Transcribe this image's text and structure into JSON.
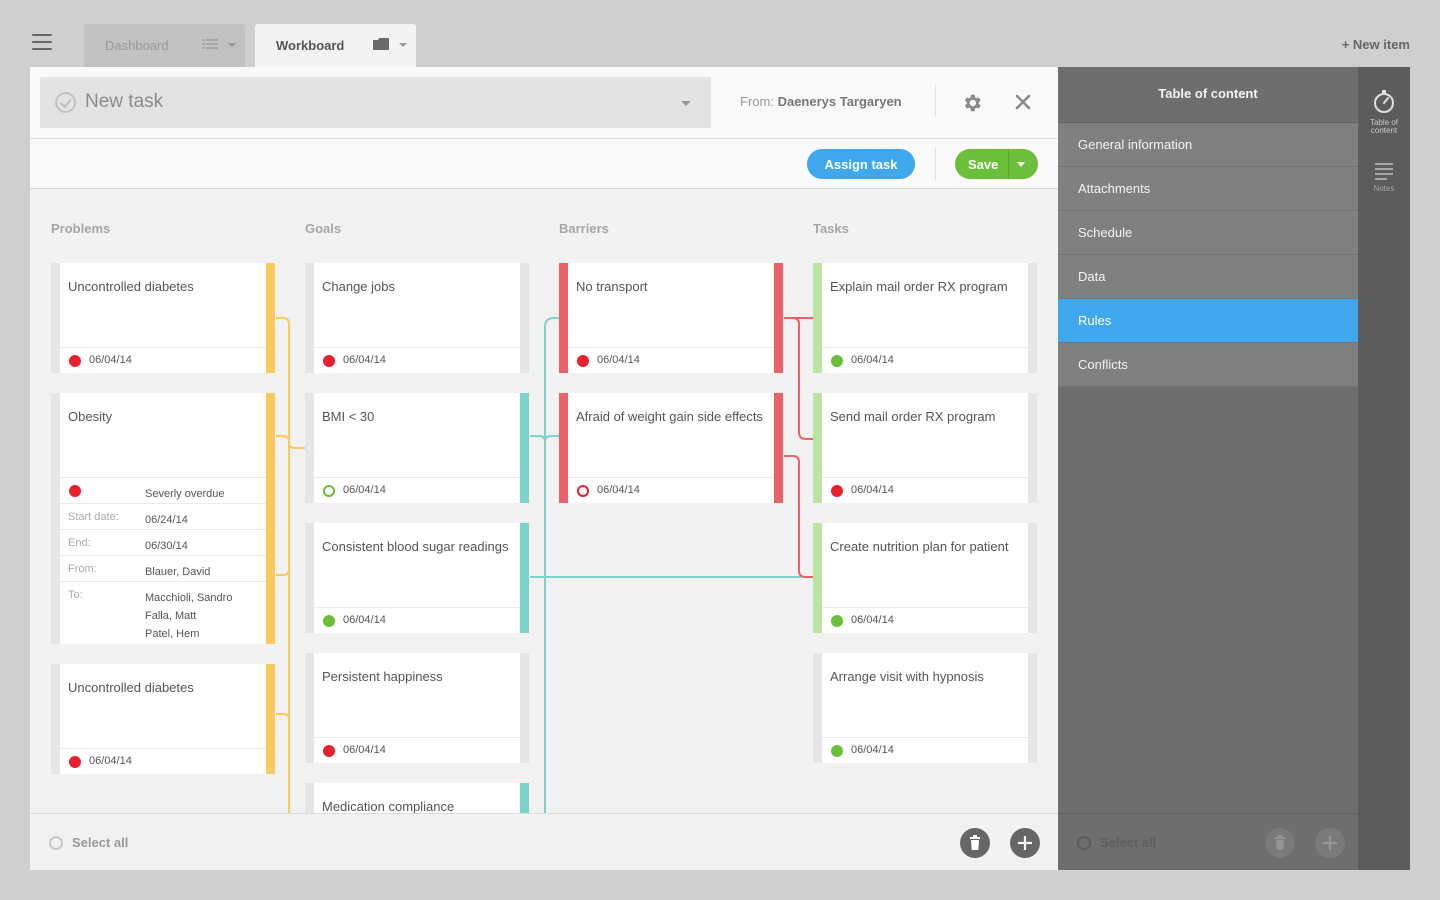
{
  "topbar": {
    "tabs": [
      {
        "label": "Dashboard",
        "icon": "grid-list-icon"
      },
      {
        "label": "Workboard",
        "icon": "folder-icon"
      }
    ],
    "new_item": "+ New item"
  },
  "header": {
    "task_title": "New task",
    "from_label": "From:",
    "from_name": "Daenerys Targaryen",
    "assign_label": "Assign task",
    "save_label": "Save"
  },
  "columns": {
    "problems": "Problems",
    "goals": "Goals",
    "barriers": "Barriers",
    "tasks": "Tasks"
  },
  "problems": [
    {
      "title": "Uncontrolled diabetes",
      "date": "06/04/14",
      "status": "red"
    },
    {
      "title": "Obesity",
      "status": "red",
      "status_text": "Severly overdue",
      "start_label": "Start date:",
      "start_value": "06/24/14",
      "end_label": "End:",
      "end_value": "06/30/14",
      "from_label": "From:",
      "from_value": "Blauer, David",
      "to_label": "To:",
      "to_values": [
        "Macchioli, Sandro",
        "Falla, Matt",
        "Patel, Hem"
      ]
    },
    {
      "title": "Uncontrolled diabetes",
      "date": "06/04/14",
      "status": "red"
    }
  ],
  "goals": [
    {
      "title": "Change jobs",
      "date": "06/04/14",
      "status": "red"
    },
    {
      "title": "BMI < 30",
      "date": "06/04/14",
      "status": "green-ring"
    },
    {
      "title": "Consistent blood sugar readings",
      "date": "06/04/14",
      "status": "green"
    },
    {
      "title": "Persistent happiness",
      "date": "06/04/14",
      "status": "red"
    },
    {
      "title": "Medication compliance"
    }
  ],
  "barriers": [
    {
      "title": "No transport",
      "date": "06/04/14",
      "status": "red"
    },
    {
      "title": "Afraid of weight gain side effects",
      "date": "06/04/14",
      "status": "red-ring"
    }
  ],
  "tasks": [
    {
      "title": "Explain mail order RX program",
      "date": "06/04/14",
      "status": "green"
    },
    {
      "title": "Send mail order RX program",
      "date": "06/04/14",
      "status": "red"
    },
    {
      "title": "Create nutrition plan for patient",
      "date": "06/04/14",
      "status": "green"
    },
    {
      "title": "Arrange visit with hypnosis",
      "date": "06/04/14",
      "status": "green"
    }
  ],
  "footer": {
    "select_all": "Select all"
  },
  "toc": {
    "title": "Table of content",
    "items": [
      "General information",
      "Attachments",
      "Schedule",
      "Data",
      "Rules",
      "Conflicts"
    ],
    "active": "Rules",
    "select_all": "Select all"
  },
  "rail": {
    "items": [
      {
        "label_line1": "Table of",
        "label_line2": "content",
        "icon": "compass-icon"
      },
      {
        "label_line1": "Notes",
        "icon": "notes-icon"
      }
    ]
  },
  "colors": {
    "accent_blue": "#3ea7ee",
    "save_green": "#6cbf3a",
    "status_red": "#e8212d",
    "problem_yellow": "#fcc95d",
    "goal_teal": "#7dd3c9",
    "barrier_red": "#ec6168",
    "task_green": "#bde3a3"
  }
}
